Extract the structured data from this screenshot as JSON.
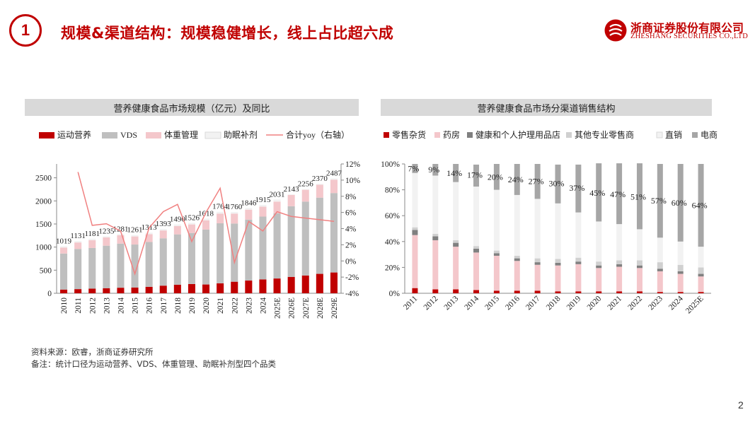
{
  "header": {
    "section_number": "1",
    "title": "规模&渠道结构：规模稳健增长，线上占比超六成"
  },
  "logo": {
    "cn": "浙商证券股份有限公司",
    "en": "ZHESHANG SECURITIES CO.,LTD"
  },
  "colors": {
    "red": "#c00000",
    "gray": "#bfbfbf",
    "pink": "#f4c7cb",
    "light": "#f2f2f2",
    "line": "#f08080",
    "darkgray": "#808080",
    "midgray": "#a6a6a6",
    "paleGray": "#d0d0d0"
  },
  "left_panel": {
    "title": "营养健康食品市场规模（亿元）及同比"
  },
  "right_panel": {
    "title": "营养健康食品市场分渠道销售结构"
  },
  "notes": {
    "source": "资料来源：欧睿，浙商证券研究所",
    "remark": "备注：统计口径为运动营养、VDS、体重管理、助眠补剂型四个品类"
  },
  "page_number": "2",
  "chart_data": [
    {
      "type": "bar",
      "stacked": true,
      "title": "营养健康食品市场规模（亿元）及同比",
      "categories": [
        "2010",
        "2011",
        "2012",
        "2013",
        "2014",
        "2015",
        "2016",
        "2017",
        "2018",
        "2019",
        "2020",
        "2021",
        "2022",
        "2023",
        "2024",
        "2025E",
        "2026E",
        "2027E",
        "2028E",
        "2029E"
      ],
      "series": [
        {
          "name": "运动营养",
          "values": [
            80,
            90,
            100,
            110,
            120,
            125,
            140,
            165,
            185,
            200,
            190,
            215,
            250,
            275,
            300,
            320,
            355,
            385,
            420,
            450
          ]
        },
        {
          "name": "VDS",
          "values": [
            780,
            870,
            880,
            920,
            955,
            930,
            970,
            1025,
            1090,
            1105,
            1190,
            1300,
            1260,
            1320,
            1360,
            1410,
            1530,
            1600,
            1650,
            1720
          ]
        },
        {
          "name": "体重管理",
          "values": [
            130,
            140,
            170,
            180,
            180,
            175,
            170,
            170,
            180,
            185,
            200,
            210,
            215,
            215,
            215,
            255,
            245,
            255,
            280,
            290
          ]
        },
        {
          "name": "助眠补剂",
          "values": [
            29,
            31,
            31,
            25,
            26,
            31,
            33,
            33,
            35,
            36,
            38,
            39,
            35,
            36,
            40,
            46,
            13,
            16,
            20,
            27
          ]
        }
      ],
      "totals": [
        1019,
        1131,
        1181,
        1235,
        1281,
        1261,
        1313,
        1393,
        1490,
        1526,
        1618,
        1764,
        1760,
        1846,
        1915,
        2031,
        2143,
        2256,
        2370,
        2487
      ],
      "total_labels": [
        "1019",
        "1131",
        "1181",
        "1235",
        "1281",
        "1261",
        "1313",
        "1393",
        "1490",
        "1526",
        "1618",
        "1764",
        "1760",
        "1846",
        "1915",
        "2031",
        "2143",
        "2256",
        "2370",
        "2487"
      ],
      "line": {
        "name": "合计yoy（右轴）",
        "axis": "right",
        "values": [
          null,
          11.0,
          4.4,
          4.6,
          3.7,
          -1.6,
          4.1,
          6.1,
          7.0,
          2.4,
          6.0,
          9.0,
          -0.2,
          4.9,
          3.7,
          6.1,
          5.5,
          5.3,
          5.1,
          4.9
        ]
      },
      "legend": [
        "运动营养",
        "VDS",
        "体重管理",
        "助眠补剂",
        "合计yoy（右轴）"
      ],
      "ylim": [
        0,
        2800
      ],
      "yticks": [
        "0",
        "500",
        "1000",
        "1500",
        "2000",
        "2500"
      ],
      "y2lim": [
        -4,
        12
      ],
      "y2ticks": [
        "-4%",
        "-2%",
        "0%",
        "2%",
        "4%",
        "6%",
        "8%",
        "10%",
        "12%"
      ]
    },
    {
      "type": "bar",
      "stacked": true,
      "percent": true,
      "title": "营养健康食品市场分渠道销售结构",
      "categories": [
        "2011",
        "2012",
        "2013",
        "2014",
        "2015",
        "2016",
        "2017",
        "2018",
        "2019",
        "2020",
        "2021",
        "2022",
        "2023",
        "2024",
        "2025E"
      ],
      "series": [
        {
          "name": "零售杂货",
          "values": [
            4,
            3,
            3,
            2.5,
            2,
            2,
            2,
            1.5,
            1.5,
            1.5,
            1.5,
            1.5,
            1,
            1,
            1
          ]
        },
        {
          "name": "药房",
          "values": [
            41,
            38,
            33,
            29,
            27,
            23,
            20,
            20,
            21,
            18,
            19,
            18,
            16,
            14,
            12
          ]
        },
        {
          "name": "健康和个人护理用品店",
          "values": [
            4,
            3,
            3,
            3,
            2,
            2,
            2,
            2,
            2,
            2,
            2,
            2,
            2,
            2,
            2
          ]
        },
        {
          "name": "其他专业零售商",
          "values": [
            2,
            2,
            2,
            2,
            2,
            2,
            3,
            3,
            3,
            3,
            3,
            4,
            5,
            5,
            5
          ]
        },
        {
          "name": "直销",
          "values": [
            42,
            45,
            45,
            46,
            47,
            47,
            46,
            43,
            35,
            31,
            28,
            24,
            19,
            18,
            16
          ]
        },
        {
          "name": "电商",
          "values": [
            7,
            9,
            14,
            17,
            20,
            24,
            27,
            30,
            37,
            45,
            47,
            51,
            57,
            60,
            64
          ]
        }
      ],
      "ecommerce_labels": [
        "7%",
        "9%",
        "14%",
        "17%",
        "20%",
        "24%",
        "27%",
        "30%",
        "37%",
        "45%",
        "47%",
        "51%",
        "57%",
        "60%",
        "64%"
      ],
      "legend": [
        "零售杂货",
        "药房",
        "健康和个人护理用品店",
        "其他专业零售商",
        "直销",
        "电商"
      ],
      "ylim": [
        0,
        100
      ],
      "yticks": [
        "0%",
        "20%",
        "40%",
        "60%",
        "80%",
        "100%"
      ]
    }
  ]
}
